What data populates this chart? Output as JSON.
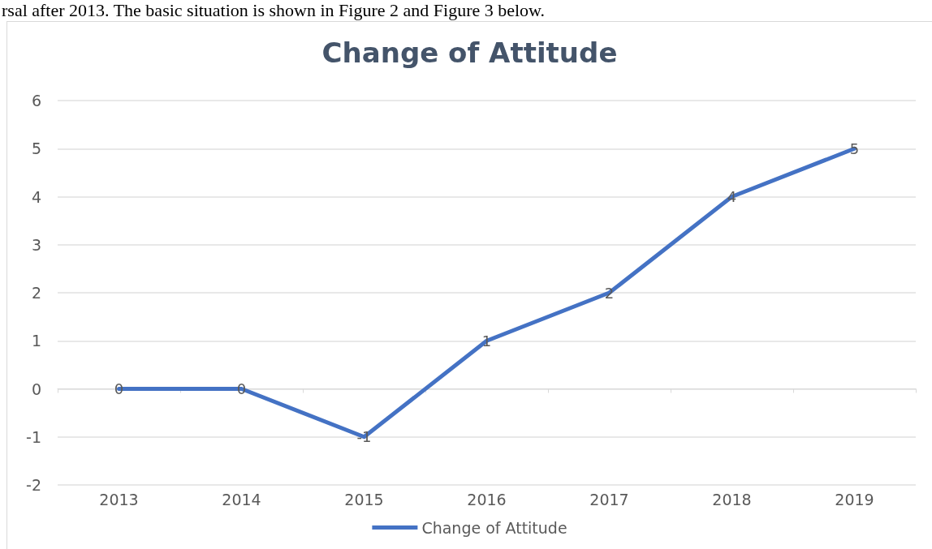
{
  "chart_data": {
    "type": "line",
    "title": "Change of Attitude",
    "annotations": [
      "rsal after 2013. The basic situation is shown in Figure 2 and Figure 3 below."
    ],
    "categories": [
      "2013",
      "2014",
      "2015",
      "2016",
      "2017",
      "2018",
      "2019"
    ],
    "series": [
      {
        "name": "Change of Attitude",
        "color": "#4472c4",
        "values": [
          0,
          0,
          -1,
          1,
          2,
          4,
          5
        ]
      }
    ],
    "ylim": [
      -2,
      6
    ],
    "yticks": [
      -2,
      -1,
      0,
      1,
      2,
      3,
      4,
      5,
      6
    ],
    "grid": "y",
    "legend": "bottom",
    "data_labels": true,
    "marker": "none",
    "line_style": "solid"
  }
}
